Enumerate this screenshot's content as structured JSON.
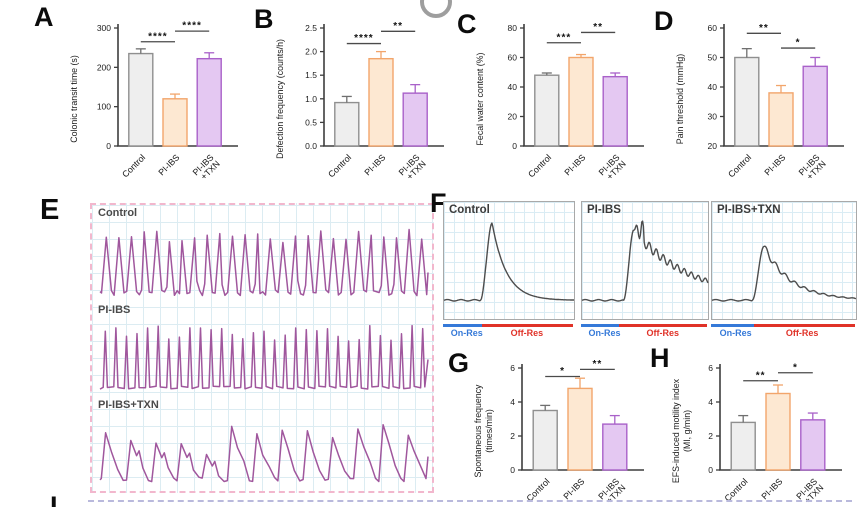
{
  "figure": {
    "background": "#ffffff",
    "artifact_partial_letter": "C",
    "panels": {
      "A": {
        "letter": "A"
      },
      "B": {
        "letter": "B"
      },
      "C": {
        "letter": "C"
      },
      "D": {
        "letter": "D"
      },
      "E": {
        "letter": "E"
      },
      "F": {
        "letter": "F"
      },
      "G": {
        "letter": "G"
      },
      "H": {
        "letter": "H"
      },
      "I": {
        "letter": "I"
      }
    },
    "colors": {
      "bars": [
        {
          "name": "Control",
          "fill": "#eeeeee",
          "stroke": "#8f8f8f",
          "err": "#6f6f6f"
        },
        {
          "name": "PI-IBS",
          "fill": "#fde8d2",
          "stroke": "#f2a56b",
          "err": "#f2a56b"
        },
        {
          "name": "PI-IBS+TXN",
          "fill": "#e4c8f2",
          "stroke": "#a961c9",
          "err": "#a961c9"
        }
      ],
      "axis": "#3d3d3d",
      "sig_line": "#4a4a4a",
      "sig_star": "#111111",
      "grid": "#dcecf2",
      "trace_e": "#a0579d",
      "trace_f": "#4d4d4d",
      "on_res": "#3579d8",
      "off_res": "#e03228",
      "e_border": "#f2b7cd",
      "i_border": "#b9b9dc"
    }
  },
  "chart_data": [
    {
      "panel": "A",
      "type": "bar",
      "ylabel": "Colonic transit time (s)",
      "ylabel_lines": [
        "Colonic transit time (s)"
      ],
      "categories": [
        "Control",
        "PI-IBS",
        "PI-IBS+TXN"
      ],
      "category_lines": [
        [
          "Control"
        ],
        [
          "PI-IBS"
        ],
        [
          "PI-IBS",
          "+TXN"
        ]
      ],
      "values": [
        235,
        120,
        222
      ],
      "errors": [
        12,
        12,
        15
      ],
      "ylim": [
        0,
        300
      ],
      "yticks": [
        0,
        100,
        200,
        300
      ],
      "ytick_labels": [
        "0",
        "100",
        "200",
        "300"
      ],
      "significance": [
        {
          "pair": [
            0,
            1
          ],
          "label": "****",
          "line_y": 265
        },
        {
          "pair": [
            1,
            2
          ],
          "label": "****",
          "line_y": 292
        }
      ]
    },
    {
      "panel": "B",
      "type": "bar",
      "ylabel": "Defection frequency (counts/h)",
      "ylabel_lines": [
        "Defection frequency (counts/h)"
      ],
      "categories": [
        "Control",
        "PI-IBS",
        "PI-IBS+TXN"
      ],
      "category_lines": [
        [
          "Control"
        ],
        [
          "PI-IBS"
        ],
        [
          "PI-IBS",
          "+TXN"
        ]
      ],
      "values": [
        0.92,
        1.85,
        1.12
      ],
      "errors": [
        0.13,
        0.15,
        0.18
      ],
      "ylim": [
        0,
        2.5
      ],
      "yticks": [
        0,
        0.5,
        1.0,
        1.5,
        2.0,
        2.5
      ],
      "ytick_labels": [
        "0.0",
        "0.5",
        "1.0",
        "1.5",
        "2.0",
        "2.5"
      ],
      "significance": [
        {
          "pair": [
            0,
            1
          ],
          "label": "****",
          "line_y": 2.17
        },
        {
          "pair": [
            1,
            2
          ],
          "label": "**",
          "line_y": 2.43
        }
      ]
    },
    {
      "panel": "C",
      "type": "bar",
      "ylabel": "Fecal water content (%)",
      "ylabel_lines": [
        "Fecal water content (%)"
      ],
      "categories": [
        "Control",
        "PI-IBS",
        "PI-IBS+TXN"
      ],
      "category_lines": [
        [
          "Control"
        ],
        [
          "PI-IBS"
        ],
        [
          "PI-IBS",
          "+TXN"
        ]
      ],
      "values": [
        48,
        60,
        47
      ],
      "errors": [
        1.5,
        2,
        2.5
      ],
      "ylim": [
        0,
        80
      ],
      "yticks": [
        0,
        20,
        40,
        60,
        80
      ],
      "ytick_labels": [
        "0",
        "20",
        "40",
        "60",
        "80"
      ],
      "significance": [
        {
          "pair": [
            0,
            1
          ],
          "label": "***",
          "line_y": 70
        },
        {
          "pair": [
            1,
            2
          ],
          "label": "**",
          "line_y": 77
        }
      ]
    },
    {
      "panel": "D",
      "type": "bar",
      "ylabel": "Pain threshold (mmHg)",
      "ylabel_lines": [
        "Pain threshold (mmHg)"
      ],
      "categories": [
        "Control",
        "PI-IBS",
        "PI-IBS+TXN"
      ],
      "category_lines": [
        [
          "Control"
        ],
        [
          "PI-IBS"
        ],
        [
          "PI-IBS",
          "+TXN"
        ]
      ],
      "values": [
        50,
        38,
        47
      ],
      "errors": [
        3,
        2.5,
        3
      ],
      "ylim": [
        20,
        60
      ],
      "yticks": [
        20,
        30,
        40,
        50,
        60
      ],
      "ytick_labels": [
        "20",
        "30",
        "40",
        "50",
        "60"
      ],
      "significance": [
        {
          "pair": [
            0,
            1
          ],
          "label": "**",
          "line_y": 58.2
        },
        {
          "pair": [
            1,
            2
          ],
          "label": "*",
          "line_y": 53.2
        }
      ]
    },
    {
      "panel": "E",
      "type": "line",
      "description": "Spontaneous colonic contraction traces on grid paper",
      "traces": [
        {
          "label": "Control",
          "pattern": "regular tall rhythmic peaks",
          "n_peaks": 26
        },
        {
          "label": "PI-IBS",
          "pattern": "rapid narrow high-frequency spikes",
          "n_peaks": 31
        },
        {
          "label": "PI-IBS+TXN",
          "pattern": "slower irregular broad peaks",
          "n_peaks": 13
        }
      ]
    },
    {
      "panel": "F",
      "type": "line",
      "description": "EFS response traces with stimulation bars",
      "boxes": [
        {
          "label": "Control",
          "response": "single sharp high peak, smooth decay"
        },
        {
          "label": "PI-IBS",
          "response": "high plateau peak with strong oscillatory decay"
        },
        {
          "label": "PI-IBS+TXN",
          "response": "reduced peak with mild oscillatory decay"
        }
      ],
      "stim": {
        "on": "On-Res",
        "off": "Off-Res"
      }
    },
    {
      "panel": "G",
      "type": "bar",
      "ylabel": "Spontaneous frequency (times/min)",
      "ylabel_lines": [
        "Spontaneous frequency",
        "(times/min)"
      ],
      "categories": [
        "Control",
        "PI-IBS",
        "PI-IBS+TXN"
      ],
      "category_lines": [
        [
          "Control"
        ],
        [
          "PI-IBS"
        ],
        [
          "PI-IBS",
          "+TXN"
        ]
      ],
      "values": [
        3.5,
        4.8,
        2.7
      ],
      "errors": [
        0.3,
        0.6,
        0.5
      ],
      "ylim": [
        0,
        6
      ],
      "yticks": [
        0,
        2,
        4,
        6
      ],
      "ytick_labels": [
        "0",
        "2",
        "4",
        "6"
      ],
      "significance": [
        {
          "pair": [
            0,
            1
          ],
          "label": "*",
          "line_y": 5.5
        },
        {
          "pair": [
            1,
            2
          ],
          "label": "**",
          "line_y": 5.92
        }
      ]
    },
    {
      "panel": "H",
      "type": "bar",
      "ylabel": "EFS-induced motility index (MI, g/min)",
      "ylabel_lines": [
        "EFS-induced motility index",
        "(MI, g/min)"
      ],
      "categories": [
        "Control",
        "PI-IBS",
        "PI-IBS+TXN"
      ],
      "category_lines": [
        [
          "Control"
        ],
        [
          "PI-IBS"
        ],
        [
          "PI-IBS",
          "+TXN"
        ]
      ],
      "values": [
        2.8,
        4.5,
        2.95
      ],
      "errors": [
        0.4,
        0.5,
        0.4
      ],
      "ylim": [
        0,
        6
      ],
      "yticks": [
        0,
        2,
        4,
        6
      ],
      "ytick_labels": [
        "0",
        "2",
        "4",
        "6"
      ],
      "significance": [
        {
          "pair": [
            0,
            1
          ],
          "label": "**",
          "line_y": 5.25
        },
        {
          "pair": [
            1,
            2
          ],
          "label": "*",
          "line_y": 5.72
        }
      ]
    }
  ]
}
